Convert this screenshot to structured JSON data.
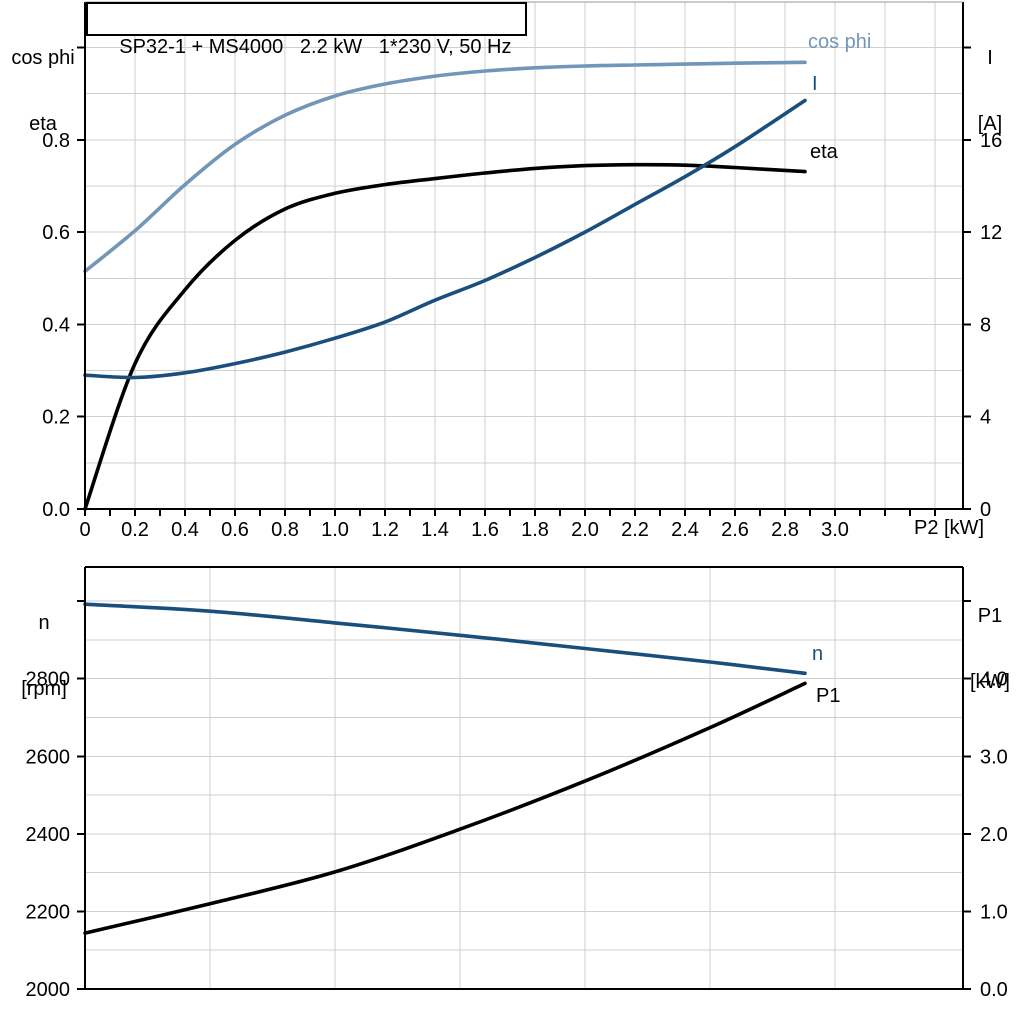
{
  "title_box": "SP32-1 + MS4000   2.2 kW   1*230 V, 50 Hz",
  "labels": {
    "top_left_axis_line1": "cos phi",
    "top_left_axis_line2": "eta",
    "top_right_axis_line1": "I",
    "top_right_axis_line2": "[A]",
    "x_axis_title": "P2 [kW]",
    "bottom_left_axis_line1": "n",
    "bottom_left_axis_line2": "[rpm]",
    "bottom_right_axis_line1": "P1",
    "bottom_right_axis_line2": "[kW]",
    "curve_cos_phi": "cos phi",
    "curve_I": "I",
    "curve_eta": "eta",
    "curve_n": "n",
    "curve_P1": "P1"
  },
  "colors": {
    "light_blue": "#7296b8",
    "dark_blue": "#1a4f7d",
    "black": "#000000",
    "grid": "#cfcfcf",
    "axis": "#000000",
    "top_border": "#9a9a9a"
  },
  "chart_data": [
    {
      "type": "line",
      "position": "top",
      "title": "SP32-1 + MS4000   2.2 kW   1*230 V, 50 Hz",
      "x_axis": {
        "label": "P2 [kW]",
        "range": [
          0,
          3.512
        ],
        "tick_vals": [
          0,
          0.2,
          0.4,
          0.6,
          0.8,
          1.0,
          1.2,
          1.4,
          1.6,
          1.8,
          2.0,
          2.2,
          2.4,
          2.6,
          2.8,
          3.0
        ],
        "tick_labels": [
          "0",
          "0.2",
          "0.4",
          "0.6",
          "0.8",
          "1.0",
          "1.2",
          "1.4",
          "1.6",
          "1.8",
          "2.0",
          "2.2",
          "2.4",
          "2.6",
          "2.8",
          "3.0"
        ],
        "minor_tick_step": 0.1,
        "minor_tick_max": 3.4,
        "grid_step": 0.2,
        "grid_max": 3.4
      },
      "y_left": {
        "label": "cos phi / eta",
        "range": [
          0,
          1.0986
        ],
        "tick_vals": [
          0,
          0.2,
          0.4,
          0.6,
          0.8
        ],
        "tick_labels": [
          "0.0",
          "0.2",
          "0.4",
          "0.6",
          "0.8"
        ],
        "extra_tick_vals": [
          1.0
        ],
        "grid_min": 0.1,
        "grid_step": 0.1,
        "grid_max": 1.0
      },
      "y_right": {
        "label": "I [A]",
        "range": [
          0,
          21.97
        ],
        "tick_vals": [
          0,
          4,
          8,
          12,
          16
        ],
        "tick_labels": [
          "0",
          "4",
          "8",
          "12",
          "16"
        ],
        "extra_tick_vals": [
          20
        ]
      },
      "series": [
        {
          "name": "cos phi",
          "axis": "left",
          "color": "#7296b8",
          "x": [
            0,
            0.2,
            0.4,
            0.6,
            0.8,
            1.0,
            1.2,
            1.4,
            1.6,
            1.8,
            2.0,
            2.2,
            2.4,
            2.6,
            2.88
          ],
          "y": [
            0.515,
            0.603,
            0.703,
            0.79,
            0.853,
            0.895,
            0.921,
            0.938,
            0.949,
            0.956,
            0.96,
            0.962,
            0.964,
            0.966,
            0.968
          ]
        },
        {
          "name": "eta",
          "axis": "left",
          "color": "#000000",
          "x": [
            0,
            0.2,
            0.4,
            0.6,
            0.8,
            1.0,
            1.2,
            1.4,
            1.6,
            1.8,
            2.0,
            2.2,
            2.4,
            2.6,
            2.88
          ],
          "y": [
            0,
            0.315,
            0.475,
            0.582,
            0.65,
            0.684,
            0.703,
            0.716,
            0.728,
            0.738,
            0.744,
            0.746,
            0.745,
            0.74,
            0.731
          ]
        },
        {
          "name": "I",
          "axis": "right",
          "color": "#1a4f7d",
          "x": [
            0,
            0.2,
            0.4,
            0.6,
            0.8,
            1.0,
            1.2,
            1.4,
            1.6,
            1.8,
            2.0,
            2.2,
            2.4,
            2.6,
            2.88
          ],
          "y": [
            5.8,
            5.7,
            5.9,
            6.3,
            6.8,
            7.4,
            8.1,
            9.05,
            9.9,
            10.9,
            12.0,
            13.2,
            14.4,
            15.7,
            17.7
          ]
        }
      ]
    },
    {
      "type": "line",
      "position": "bottom",
      "x_axis": {
        "label": "",
        "range": [
          0,
          3.512
        ],
        "tick_vals": [],
        "tick_labels": [],
        "grid_step": 0.5,
        "grid_max": 3.0
      },
      "y_left": {
        "label": "n [rpm]",
        "range": [
          2000,
          3088
        ],
        "tick_vals": [
          2000,
          2200,
          2400,
          2600,
          2800
        ],
        "tick_labels": [
          "2000",
          "2200",
          "2400",
          "2600",
          "2800"
        ],
        "extra_tick_vals": [
          3000
        ],
        "grid_min": 2100,
        "grid_step": 100,
        "grid_max": 3000
      },
      "y_right": {
        "label": "P1 [kW]",
        "range": [
          0,
          5.44
        ],
        "tick_vals": [
          0,
          1,
          2,
          3,
          4
        ],
        "tick_labels": [
          "0.0",
          "1.0",
          "2.0",
          "3.0",
          "4.0"
        ],
        "extra_tick_vals": [
          5
        ]
      },
      "series": [
        {
          "name": "n",
          "axis": "left",
          "color": "#1a4f7d",
          "x": [
            0,
            0.5,
            1.0,
            1.5,
            2.0,
            2.5,
            2.88
          ],
          "y": [
            2992,
            2974,
            2944,
            2912,
            2878,
            2843,
            2814
          ]
        },
        {
          "name": "P1",
          "axis": "right",
          "color": "#000000",
          "x": [
            0,
            0.5,
            1.0,
            1.5,
            2.0,
            2.5,
            2.88
          ],
          "y": [
            0.72,
            1.1,
            1.51,
            2.06,
            2.68,
            3.37,
            3.94
          ]
        }
      ]
    }
  ]
}
